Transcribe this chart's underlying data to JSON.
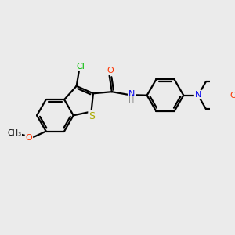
{
  "bg_color": "#ebebeb",
  "bond_color": "#000000",
  "bond_width": 1.6,
  "atom_colors": {
    "Cl": "#00bb00",
    "S": "#aaaa00",
    "O": "#ff3300",
    "N": "#0000ee",
    "H": "#888888",
    "C": "#000000"
  },
  "font_size": 8,
  "fig_width": 3.0,
  "fig_height": 3.0,
  "dpi": 100
}
